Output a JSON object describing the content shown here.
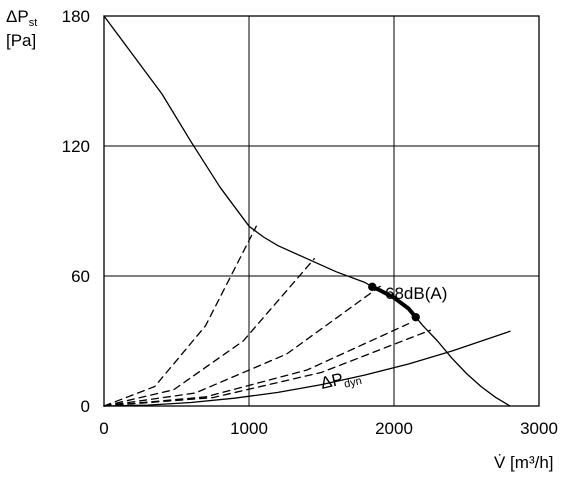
{
  "chart_data": {
    "type": "line",
    "xlabel": "V̇ [m³/h]",
    "ylabel": {
      "base": "ΔP",
      "sub": "st",
      "unit": "[Pa]"
    },
    "xlim": [
      0,
      3000
    ],
    "ylim": [
      0,
      180
    ],
    "xticks": [
      0,
      1000,
      2000,
      3000
    ],
    "yticks": [
      0,
      60,
      120,
      180
    ],
    "grid": true,
    "series": [
      {
        "name": "",
        "style": "solid",
        "x": [
          0,
          200,
          400,
          600,
          800,
          1000,
          1100,
          1200,
          1400,
          1600,
          1800,
          1850,
          1900,
          2000,
          2100,
          2150,
          2200,
          2300,
          2400,
          2500,
          2600,
          2700,
          2800
        ],
        "y": [
          180,
          162,
          144,
          122,
          101,
          83,
          78,
          74,
          68,
          62,
          57,
          55,
          53.5,
          50,
          45,
          41,
          37,
          30,
          22,
          15,
          9,
          4,
          0
        ]
      },
      {
        "name": "ΔP dyn",
        "style": "solid",
        "x": [
          0,
          300,
          600,
          900,
          1200,
          1500,
          1800,
          2100,
          2400,
          2800
        ],
        "y": [
          0,
          0.4,
          1.6,
          3.6,
          6.3,
          9.9,
          14.3,
          19.4,
          25.4,
          34.5
        ]
      },
      {
        "name": "",
        "style": "dashed",
        "x": [
          0,
          350,
          700,
          1050
        ],
        "y": [
          0,
          9,
          37,
          83
        ]
      },
      {
        "name": "",
        "style": "dashed",
        "x": [
          0,
          480,
          960,
          1450
        ],
        "y": [
          0,
          7.5,
          30,
          68
        ]
      },
      {
        "name": "",
        "style": "dashed",
        "x": [
          0,
          630,
          1260,
          1920
        ],
        "y": [
          0,
          6,
          24,
          56
        ]
      },
      {
        "name": "",
        "style": "dashed",
        "x": [
          0,
          700,
          1400,
          2100
        ],
        "y": [
          0,
          4.2,
          16.6,
          38
        ]
      },
      {
        "name": "",
        "style": "dashed",
        "x": [
          0,
          750,
          1500,
          2250
        ],
        "y": [
          0,
          3.9,
          15.5,
          35
        ]
      }
    ],
    "operating_segment": {
      "x": [
        1850,
        1900,
        2000,
        2100,
        2150
      ],
      "y": [
        55,
        53.5,
        50,
        45,
        41
      ],
      "label": "68dB(A)"
    },
    "annotations": [
      {
        "text": "ΔP",
        "sub": "dyn"
      }
    ]
  }
}
